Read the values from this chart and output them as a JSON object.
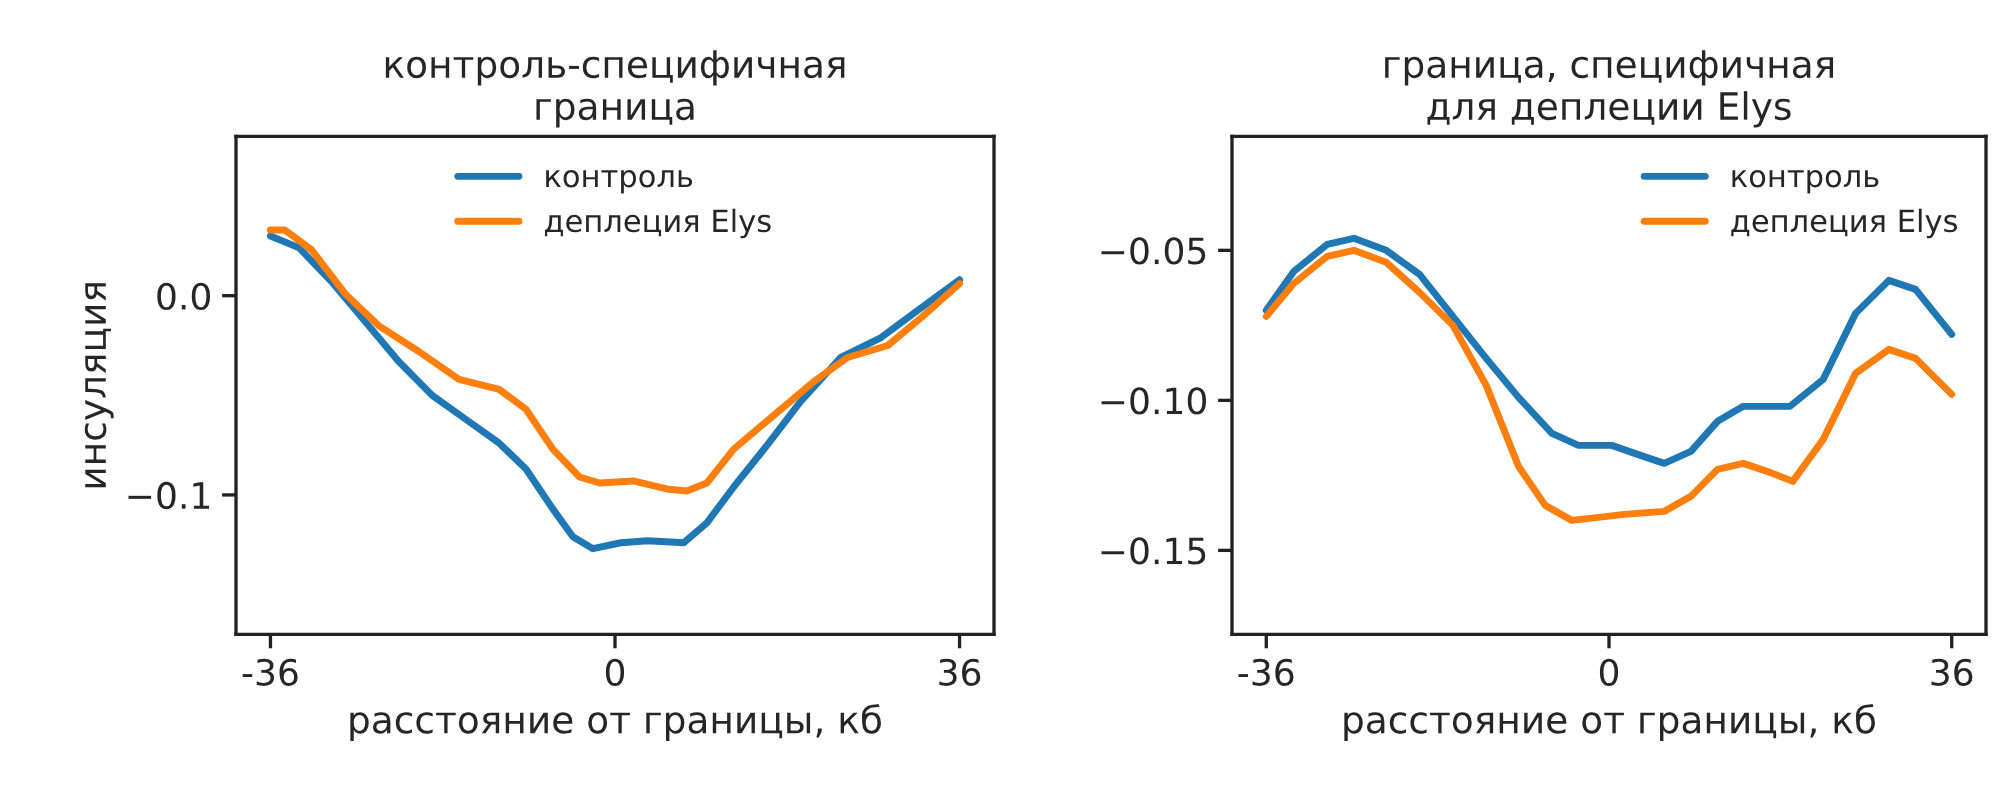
{
  "chart_data": [
    {
      "type": "line",
      "title": "контроль-специфичная\nграница",
      "xlabel": "расстояние от границы, кб",
      "ylabel": "инсуляция",
      "xlim": [
        -39.6,
        39.6
      ],
      "xticks": [
        {
          "value": -36,
          "label": "-36"
        },
        0,
        36
      ],
      "ylim": [
        -0.17,
        0.08
      ],
      "yticks": [
        {
          "value": 0,
          "label": "0.0"
        },
        {
          "value": -0.1,
          "label": "−0.1"
        }
      ],
      "grid": false,
      "legend": "top",
      "series": [
        {
          "name": "контроль",
          "color": "#1f77b4",
          "x": [
            -36,
            -33,
            -29.6,
            -26.1,
            -22.6,
            -19.1,
            -15.6,
            -12.1,
            -9.3,
            -6.5,
            -4.4,
            -2.3,
            0.6,
            3.4,
            7.2,
            9.6,
            12.4,
            15.9,
            19.4,
            23.6,
            27.8,
            32,
            36
          ],
          "values": [
            0.03,
            0.024,
            0.007,
            -0.013,
            -0.033,
            -0.05,
            -0.062,
            -0.074,
            -0.087,
            -0.107,
            -0.121,
            -0.127,
            -0.124,
            -0.123,
            -0.124,
            -0.114,
            -0.096,
            -0.075,
            -0.053,
            -0.031,
            -0.021,
            -0.006,
            0.008
          ]
        },
        {
          "name": "деплеция Elys",
          "color": "#ff7f0e",
          "x": [
            -36,
            -34.5,
            -31.7,
            -28.2,
            -24.7,
            -20.5,
            -16.3,
            -12.1,
            -9.3,
            -6.5,
            -3.7,
            -1.6,
            1.9,
            5.4,
            7.5,
            9.6,
            12.4,
            16.6,
            20.8,
            24.3,
            28.5,
            32,
            36
          ],
          "values": [
            0.033,
            0.033,
            0.023,
            0.001,
            -0.015,
            -0.028,
            -0.042,
            -0.047,
            -0.057,
            -0.077,
            -0.091,
            -0.094,
            -0.093,
            -0.097,
            -0.098,
            -0.094,
            -0.077,
            -0.06,
            -0.043,
            -0.031,
            -0.025,
            -0.011,
            0.006
          ]
        }
      ]
    },
    {
      "type": "line",
      "title": "граница, специфичная\nдля деплеции Elys",
      "xlabel": "расстояние от границы, кб",
      "xlim": [
        -39.6,
        39.6
      ],
      "xticks": [
        {
          "value": -36,
          "label": "-36"
        },
        0,
        36
      ],
      "ylim": [
        -0.178,
        -0.012
      ],
      "yticks": [
        {
          "value": -0.05,
          "label": "−0.05"
        },
        {
          "value": -0.1,
          "label": "−0.10"
        },
        {
          "value": -0.15,
          "label": "−0.15"
        }
      ],
      "grid": false,
      "legend": "top right",
      "series": [
        {
          "name": "контроль",
          "color": "#1f77b4",
          "x": [
            -36,
            -33.1,
            -29.6,
            -26.8,
            -23.4,
            -19.9,
            -16.4,
            -12.9,
            -9.5,
            -6,
            -3.2,
            0.3,
            3,
            5.8,
            8.6,
            11.4,
            14.1,
            19,
            22.5,
            25.9,
            29.4,
            32.2,
            36
          ],
          "values": [
            -0.07,
            -0.057,
            -0.048,
            -0.046,
            -0.05,
            -0.058,
            -0.072,
            -0.086,
            -0.099,
            -0.111,
            -0.115,
            -0.115,
            -0.118,
            -0.121,
            -0.117,
            -0.107,
            -0.102,
            -0.102,
            -0.093,
            -0.071,
            -0.06,
            -0.063,
            -0.078
          ]
        },
        {
          "name": "деплеция Elys",
          "color": "#ff7f0e",
          "x": [
            -36,
            -33.1,
            -29.6,
            -26.8,
            -23.4,
            -19.9,
            -16.4,
            -12.9,
            -9.5,
            -6.7,
            -3.9,
            -1.1,
            1.6,
            5.8,
            8.6,
            11.4,
            14.1,
            16.9,
            19.3,
            22.5,
            25.9,
            29.4,
            32.2,
            36
          ],
          "values": [
            -0.072,
            -0.061,
            -0.052,
            -0.05,
            -0.054,
            -0.064,
            -0.075,
            -0.095,
            -0.122,
            -0.135,
            -0.14,
            -0.139,
            -0.138,
            -0.137,
            -0.132,
            -0.123,
            -0.121,
            -0.124,
            -0.127,
            -0.113,
            -0.091,
            -0.083,
            -0.086,
            -0.098
          ]
        }
      ]
    }
  ]
}
